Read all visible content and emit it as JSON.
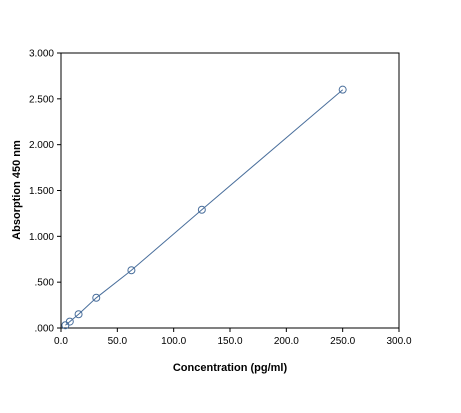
{
  "chart_data": {
    "type": "scatter",
    "title": "",
    "xlabel": "Concentration (pg/ml)",
    "ylabel": "Absorption 450 nm",
    "xlim": [
      0,
      300
    ],
    "ylim": [
      0,
      3
    ],
    "x_ticks": [
      0,
      50,
      100,
      150,
      200,
      250,
      300
    ],
    "x_tick_labels": [
      "0.0",
      "50.0",
      "100.0",
      "150.0",
      "200.0",
      "250.0",
      "300.0"
    ],
    "y_ticks": [
      0,
      0.5,
      1,
      1.5,
      2,
      2.5,
      3
    ],
    "y_tick_labels": [
      ".000",
      ".500",
      "1.000",
      "1.500",
      "2.000",
      "2.500",
      "3.000"
    ],
    "grid": false,
    "series": [
      {
        "x": [
          3.9,
          7.8,
          15.6,
          31.3,
          62.5,
          125,
          250
        ],
        "y": [
          0.03,
          0.07,
          0.15,
          0.33,
          0.63,
          1.29,
          2.6
        ],
        "marker": "open-circle",
        "line": true,
        "color": "#4a6f9c"
      }
    ]
  }
}
